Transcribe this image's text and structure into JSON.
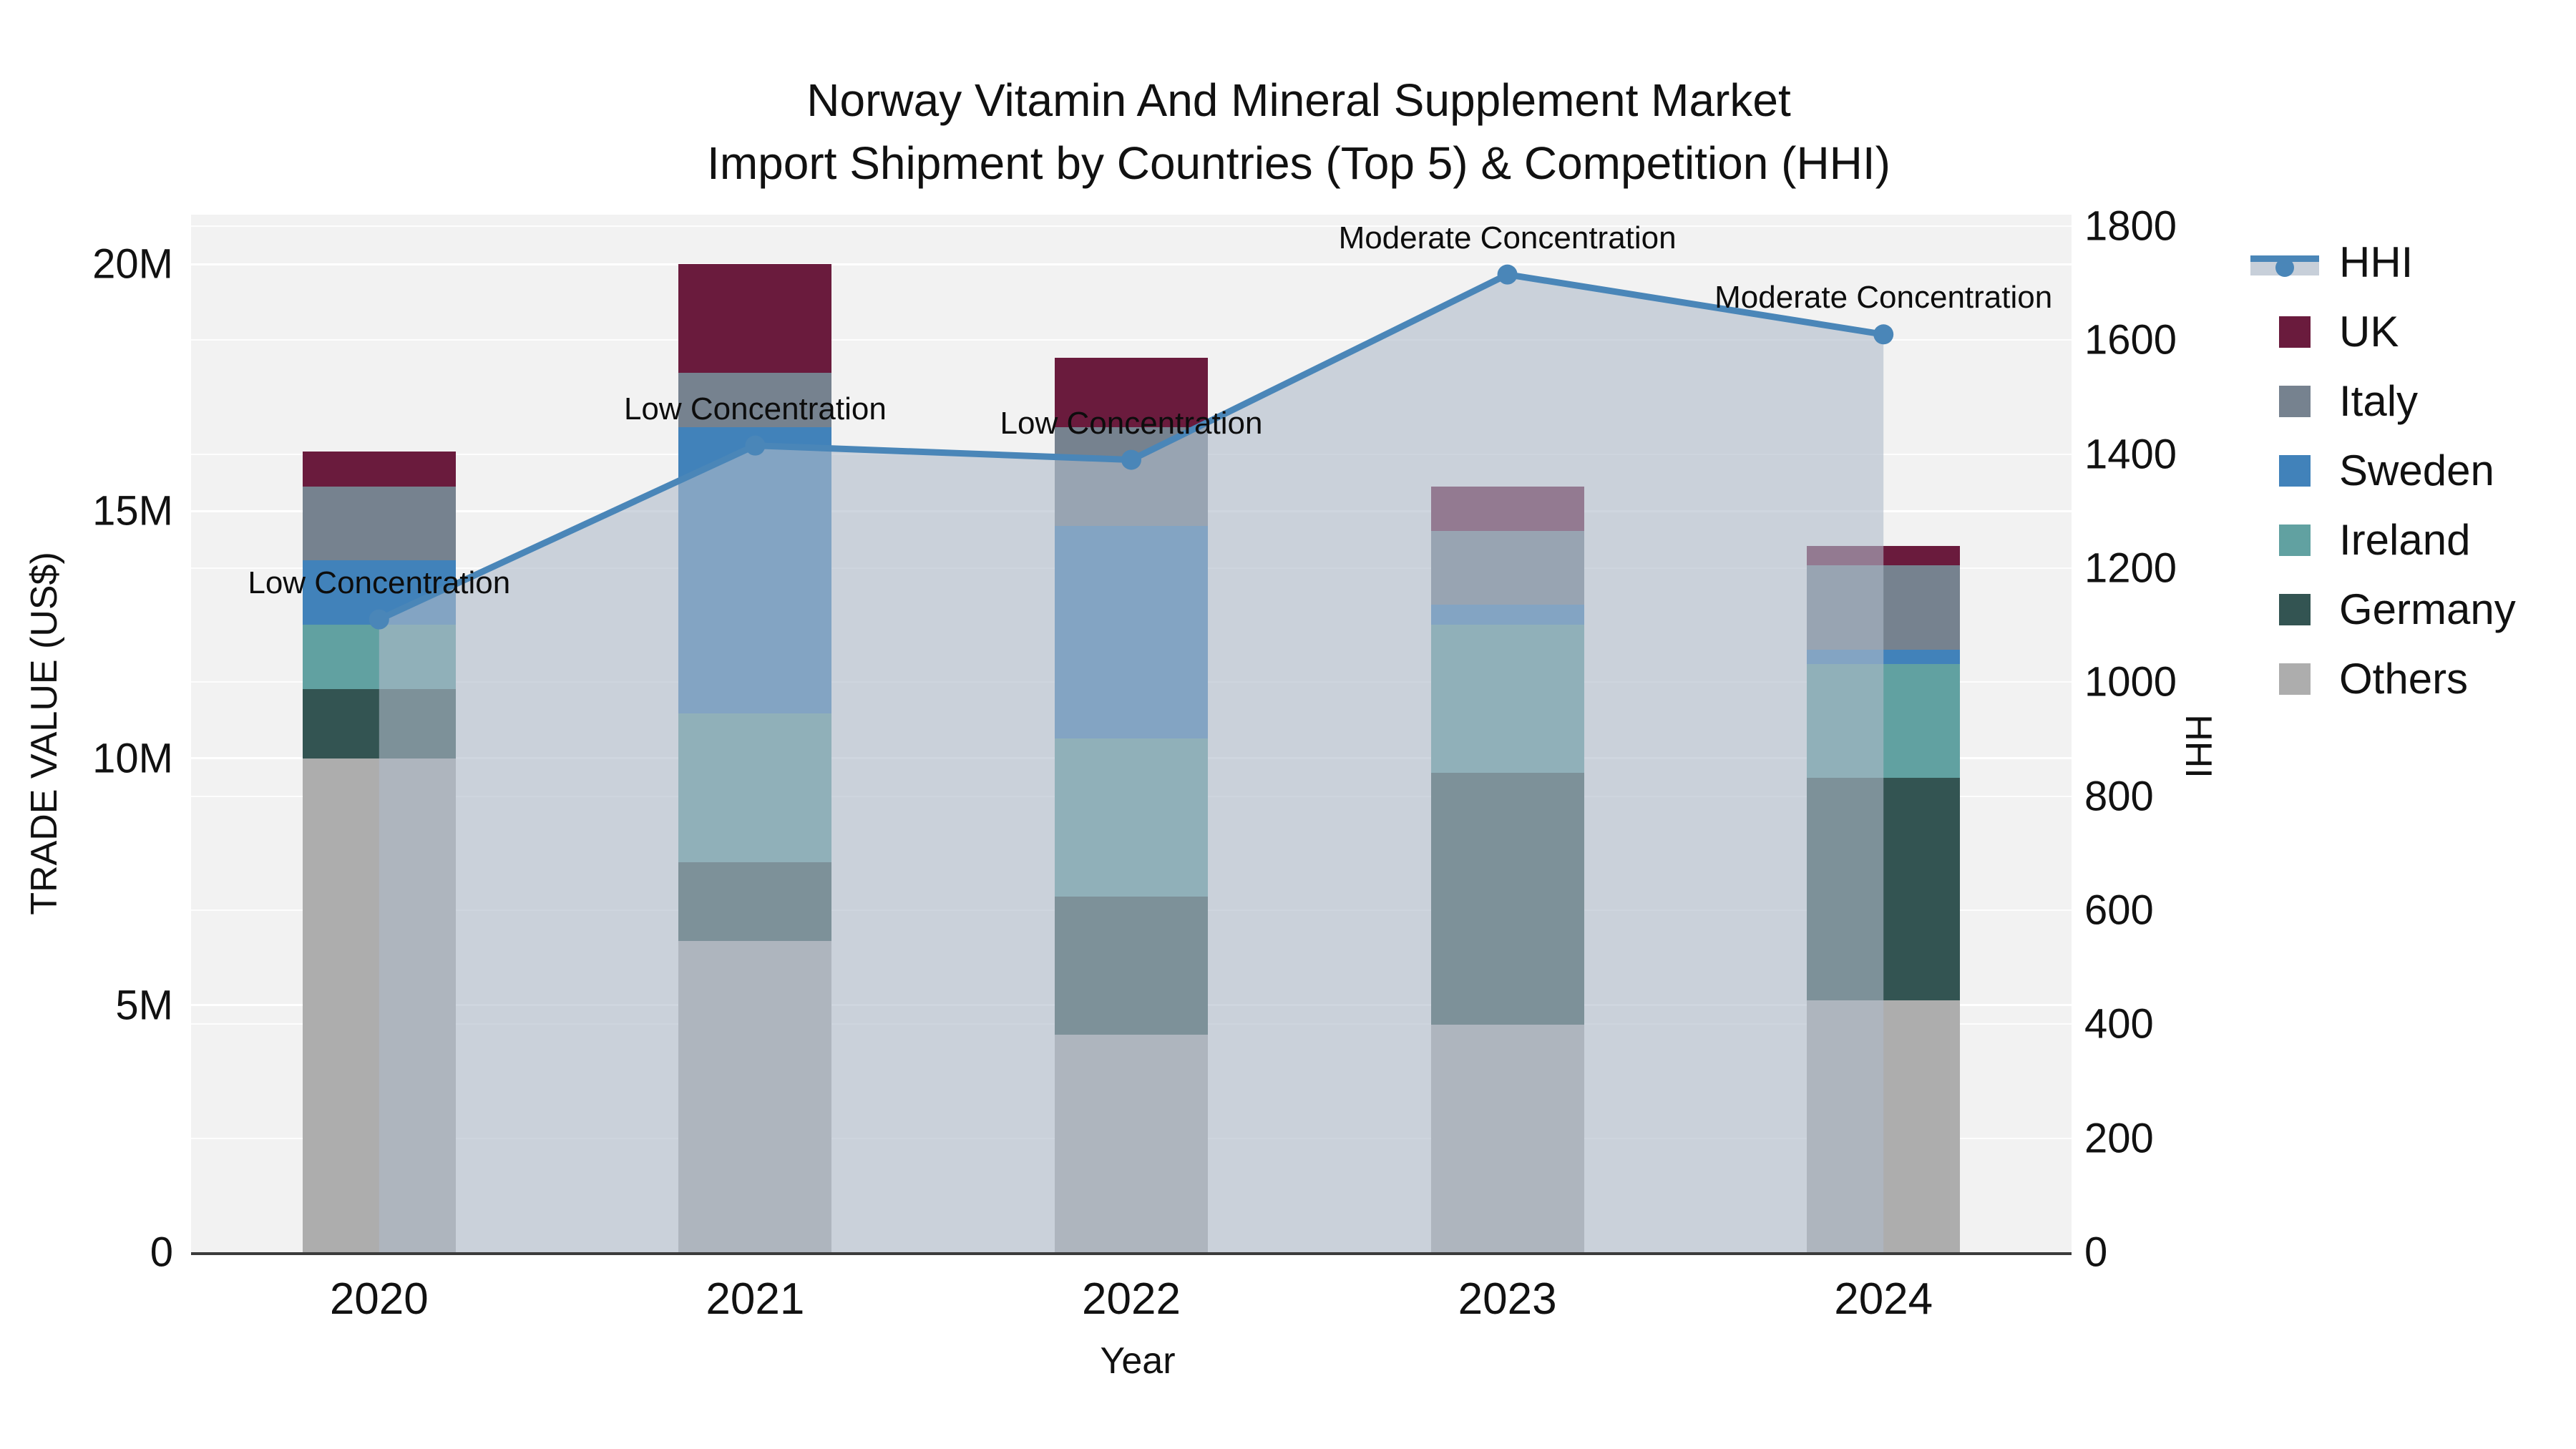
{
  "title": {
    "line1": "Norway Vitamin And Mineral Supplement Market",
    "line2": "Import Shipment by Countries (Top 5) & Competition (HHI)"
  },
  "chart_data": {
    "type": [
      "bar-stacked",
      "line"
    ],
    "categories": [
      "2020",
      "2021",
      "2022",
      "2023",
      "2024"
    ],
    "value_unit": "million US$",
    "series": [
      {
        "name": "UK",
        "color": "#6a1b3d",
        "values": [
          0.7,
          2.2,
          1.4,
          0.9,
          0.4
        ]
      },
      {
        "name": "Italy",
        "color": "#76828f",
        "values": [
          1.5,
          1.1,
          2.0,
          1.5,
          1.7
        ]
      },
      {
        "name": "Sweden",
        "color": "#4182ba",
        "values": [
          1.3,
          5.8,
          4.3,
          0.4,
          0.3
        ]
      },
      {
        "name": "Ireland",
        "color": "#61a1a1",
        "values": [
          1.3,
          3.0,
          3.2,
          3.0,
          2.3
        ]
      },
      {
        "name": "Germany",
        "color": "#335452",
        "values": [
          1.4,
          1.6,
          2.8,
          5.1,
          4.5
        ]
      },
      {
        "name": "Others",
        "color": "#adadad",
        "values": [
          10.0,
          6.3,
          4.4,
          4.6,
          5.1
        ]
      }
    ],
    "stack_order_bottom_to_top": [
      "Others",
      "Germany",
      "Ireland",
      "Sweden",
      "Italy",
      "UK"
    ],
    "bar_totals": [
      16.2,
      20.0,
      18.1,
      15.5,
      14.3
    ],
    "hhi": {
      "name": "HHI",
      "values": [
        1110,
        1415,
        1390,
        1715,
        1610
      ],
      "line_color": "#4a86b8",
      "fill_color": "#afbac9",
      "fill_opacity": 0.6
    },
    "annotations": [
      {
        "category": "2020",
        "text": "Low Concentration"
      },
      {
        "category": "2021",
        "text": "Low Concentration"
      },
      {
        "category": "2022",
        "text": "Low Concentration"
      },
      {
        "category": "2023",
        "text": "Moderate Concentration"
      },
      {
        "category": "2024",
        "text": "Moderate Concentration"
      }
    ],
    "xlabel": "Year",
    "y_left": {
      "label": "TRADE VALUE (US$)",
      "tick_labels": [
        "0",
        "5M",
        "10M",
        "15M",
        "20M"
      ],
      "tick_values": [
        0,
        5,
        10,
        15,
        20
      ],
      "axis_max": 21
    },
    "y_right": {
      "label": "HHI",
      "tick_labels": [
        "0",
        "200",
        "400",
        "600",
        "800",
        "1000",
        "1200",
        "1400",
        "1600",
        "1800"
      ],
      "tick_values": [
        0,
        200,
        400,
        600,
        800,
        1000,
        1200,
        1400,
        1600,
        1800
      ],
      "axis_max": 1820
    },
    "legend_order": [
      "HHI",
      "UK",
      "Italy",
      "Sweden",
      "Ireland",
      "Germany",
      "Others"
    ],
    "grid": true,
    "legend_position": "right",
    "plot_background": "#f2f2f2"
  }
}
